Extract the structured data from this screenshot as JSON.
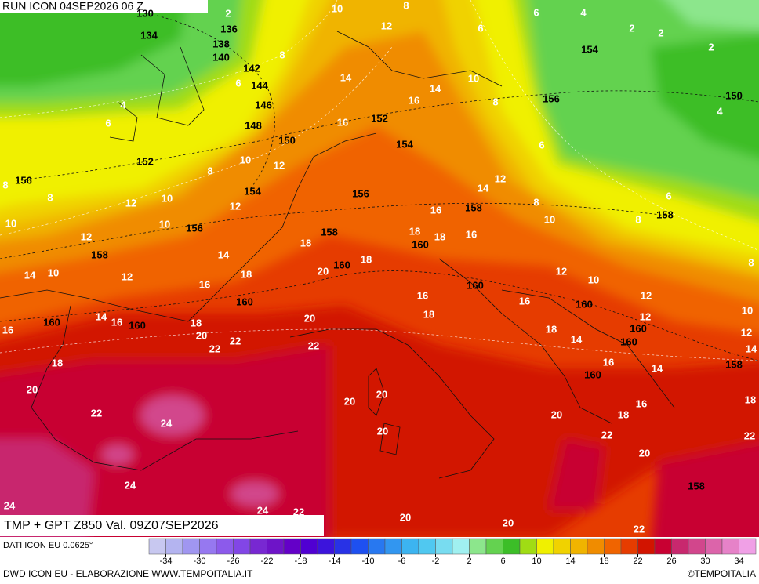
{
  "header": {
    "title": "RUN ICON 04SEP2026 06 Z"
  },
  "map": {
    "caption": "TMP + GPT Z850 Val. 09Z07SEP2026",
    "geopotential_labels": [
      130,
      134,
      136,
      138,
      140,
      142,
      144,
      146,
      148,
      150,
      152,
      154,
      156,
      156,
      158,
      160,
      160,
      160,
      158,
      156,
      160,
      160,
      158,
      152,
      154,
      154,
      156,
      150,
      158,
      160,
      160,
      160,
      160,
      160,
      158,
      158
    ],
    "temperature_labels": [
      2,
      10,
      8,
      6,
      4,
      2,
      2,
      2,
      12,
      6,
      8,
      6,
      14,
      4,
      6,
      16,
      14,
      10,
      8,
      16,
      6,
      4,
      8,
      10,
      12,
      8,
      8,
      12,
      10,
      12,
      14,
      12,
      16,
      8,
      6,
      8,
      10,
      10,
      10,
      12,
      14,
      18,
      18,
      18,
      16,
      14,
      10,
      12,
      18,
      16,
      20,
      18,
      12,
      10,
      8,
      16,
      16,
      12,
      14,
      16,
      16,
      18,
      20,
      18,
      20,
      22,
      22,
      22,
      18,
      14,
      12,
      10,
      12,
      14,
      18,
      16,
      14,
      20,
      20,
      20,
      18,
      16,
      24,
      22,
      20,
      18,
      20,
      22,
      22,
      20,
      24,
      24,
      24,
      22,
      20,
      20,
      22
    ]
  },
  "legend": {
    "source": "DATI ICON EU 0.0625°",
    "lim": [
      -36,
      36
    ],
    "ticks": [
      -34,
      -30,
      -26,
      -22,
      -18,
      -14,
      -10,
      -6,
      -2,
      2,
      6,
      10,
      14,
      18,
      22,
      26,
      30,
      34
    ],
    "colors": [
      "#c8c8f0",
      "#b4b4f0",
      "#a096f0",
      "#9678f0",
      "#8c5aeb",
      "#8246e6",
      "#7828d2",
      "#6e14c8",
      "#6400c8",
      "#5000d2",
      "#3c14dc",
      "#2832e6",
      "#1e50f0",
      "#2878f0",
      "#3296f0",
      "#3cb4f0",
      "#50c8f0",
      "#78dcf0",
      "#a0f0f0",
      "#8ce68c",
      "#64d250",
      "#3cbe28",
      "#a0dc14",
      "#f0f000",
      "#f0d200",
      "#f0b400",
      "#f08c00",
      "#f06400",
      "#e63c00",
      "#d21400",
      "#c80032",
      "#c8286e",
      "#d2468c",
      "#dc64aa",
      "#e682c8",
      "#f0a0e6"
    ]
  },
  "footer": {
    "credit": "DWD ICON EU - ELABORAZIONE WWW.TEMPOITALIA.IT",
    "copyright": "©TEMPOITALIA"
  }
}
